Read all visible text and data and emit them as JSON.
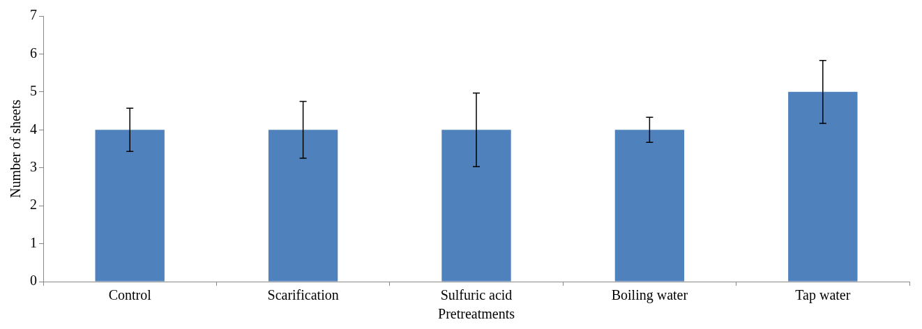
{
  "chart_data": {
    "type": "bar",
    "xlabel": "Pretreatments",
    "ylabel": "Number of sheets",
    "categories": [
      "Control",
      "Scarification",
      "Sulfuric acid",
      "Boiling water",
      "Tap water"
    ],
    "values": [
      4,
      4,
      4,
      4,
      5
    ],
    "color": "#4f81bd",
    "errors": [
      0.57,
      0.75,
      0.97,
      0.33,
      0.83
    ],
    "ylim": [
      0,
      7
    ],
    "yticks": [
      0,
      1,
      2,
      3,
      4,
      5,
      6,
      7
    ],
    "grid": false,
    "legend": false
  }
}
